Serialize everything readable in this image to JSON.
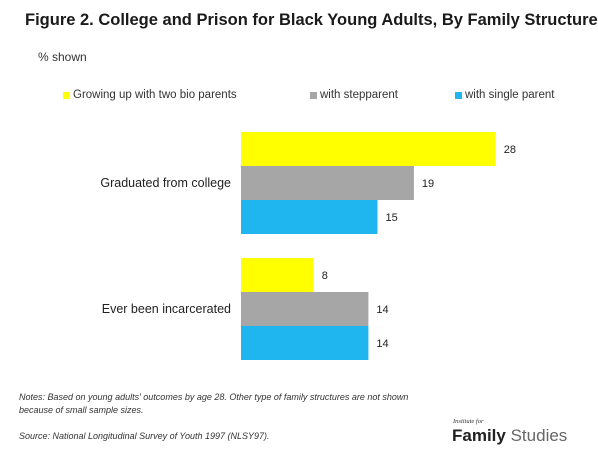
{
  "header": {
    "title": "Figure 2. College and Prison for Black Young Adults, By Family Structure",
    "subtitle": "% shown"
  },
  "legend": {
    "position": "top",
    "items": [
      {
        "label": "Growing up with two bio parents",
        "color": "#ffff00"
      },
      {
        "label": "with stepparent",
        "color": "#a6a6a6"
      },
      {
        "label": "with single parent",
        "color": "#1fb5ef"
      }
    ]
  },
  "chart_data": {
    "type": "bar",
    "orientation": "horizontal",
    "title": "Figure 2. College and Prison for Black Young Adults, By Family Structure",
    "subtitle": "% shown",
    "categories": [
      "Graduated from college",
      "Ever been incarcerated"
    ],
    "series": [
      {
        "name": "Growing up with two bio parents",
        "values": [
          28,
          8
        ],
        "color": "#ffff00"
      },
      {
        "name": "with stepparent",
        "values": [
          19,
          14
        ],
        "color": "#a6a6a6"
      },
      {
        "name": "with single parent",
        "values": [
          15,
          14
        ],
        "color": "#1fb5ef"
      }
    ],
    "xlim": [
      0,
      30
    ],
    "grid": false,
    "data_labels": true
  },
  "footer": {
    "notes": "Notes: Based on young adults' outcomes by age 28. Other type of family structures are not shown because of small sample sizes.",
    "source": "Source: National Longitudinal Survey of Youth 1997 (NLSY97)."
  },
  "logo": {
    "small_text": "Institute for",
    "word1": "Family",
    "word2": "Studies"
  }
}
